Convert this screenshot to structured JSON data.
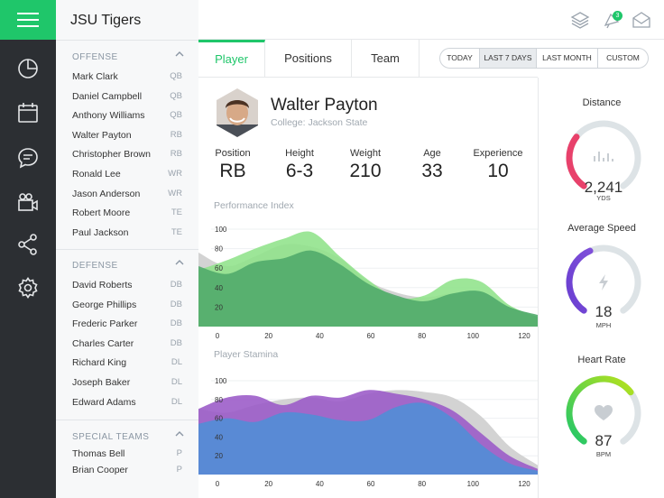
{
  "team": {
    "name": "JSU Tigers"
  },
  "colors": {
    "accent": "#1fc66a",
    "rail": "#2c2f33"
  },
  "rail": {
    "icons": [
      "menu-icon",
      "pie-chart-icon",
      "calendar-icon",
      "chat-icon",
      "video-camera-icon",
      "share-icon",
      "settings-icon"
    ]
  },
  "roster": {
    "offense": {
      "title": "OFFENSE",
      "players": [
        {
          "name": "Mark Clark",
          "pos": "QB"
        },
        {
          "name": "Daniel Campbell",
          "pos": "QB"
        },
        {
          "name": "Anthony Williams",
          "pos": "QB"
        },
        {
          "name": "Walter Payton",
          "pos": "RB"
        },
        {
          "name": "Christopher Brown",
          "pos": "RB"
        },
        {
          "name": "Ronald Lee",
          "pos": "WR"
        },
        {
          "name": "Jason Anderson",
          "pos": "WR"
        },
        {
          "name": "Robert Moore",
          "pos": "TE"
        },
        {
          "name": "Paul Jackson",
          "pos": "TE"
        }
      ]
    },
    "defense": {
      "title": "DEFENSE",
      "players": [
        {
          "name": "David Roberts",
          "pos": "DB"
        },
        {
          "name": "George Phillips",
          "pos": "DB"
        },
        {
          "name": "Frederic Parker",
          "pos": "DB"
        },
        {
          "name": "Charles Carter",
          "pos": "DB"
        },
        {
          "name": "Richard King",
          "pos": "DL"
        },
        {
          "name": "Joseph Baker",
          "pos": "DL"
        },
        {
          "name": "Edward Adams",
          "pos": "DL"
        }
      ]
    },
    "special": {
      "title": "SPECIAL TEAMS",
      "players": [
        {
          "name": "Thomas Bell",
          "pos": "P"
        },
        {
          "name": "Brian Cooper",
          "pos": "P"
        }
      ]
    }
  },
  "topbar": {
    "notification_count": "3"
  },
  "tabs": [
    {
      "label": "Player",
      "active": true
    },
    {
      "label": "Positions",
      "active": false
    },
    {
      "label": "Team",
      "active": false
    }
  ],
  "range": {
    "options": [
      "TODAY",
      "LAST 7 DAYS",
      "LAST MONTH",
      "CUSTOM"
    ],
    "selected": "LAST 7 DAYS"
  },
  "player": {
    "name": "Walter Payton",
    "college": "College: Jackson State",
    "stats": [
      {
        "label": "Position",
        "value": "RB"
      },
      {
        "label": "Height",
        "value": "6-3"
      },
      {
        "label": "Weight",
        "value": "210"
      },
      {
        "label": "Age",
        "value": "33"
      },
      {
        "label": "Experience",
        "value": "10"
      }
    ]
  },
  "chart_data": [
    {
      "type": "area",
      "title": "Performance Index",
      "x": [
        0,
        10,
        20,
        30,
        40,
        50,
        60,
        70,
        80,
        90,
        100,
        110,
        120
      ],
      "xticks": [
        0,
        20,
        40,
        60,
        80,
        100,
        120
      ],
      "yticks": [
        20,
        40,
        60,
        80,
        100
      ],
      "xlim": [
        0,
        120
      ],
      "ylim": [
        0,
        100
      ],
      "series": [
        {
          "color": "#d3d3d3",
          "values": [
            76,
            62,
            72,
            84,
            82,
            70,
            47,
            35,
            30,
            34,
            30,
            20,
            8
          ]
        },
        {
          "color": "#8fe28a",
          "values": [
            58,
            68,
            80,
            90,
            97,
            72,
            48,
            30,
            32,
            48,
            46,
            22,
            10
          ]
        },
        {
          "color": "#4ea86a",
          "values": [
            62,
            54,
            66,
            70,
            78,
            64,
            44,
            32,
            26,
            34,
            36,
            20,
            12
          ]
        }
      ]
    },
    {
      "type": "area",
      "title": "Player Stamina",
      "x": [
        0,
        10,
        20,
        30,
        40,
        50,
        60,
        70,
        80,
        90,
        100,
        110,
        120
      ],
      "xticks": [
        0,
        20,
        40,
        60,
        80,
        100,
        120
      ],
      "yticks": [
        20,
        40,
        60,
        80,
        100
      ],
      "xlim": [
        0,
        120
      ],
      "ylim": [
        0,
        100
      ],
      "series": [
        {
          "color": "#d3d3d3",
          "values": [
            70,
            66,
            74,
            80,
            82,
            78,
            86,
            90,
            88,
            82,
            62,
            30,
            10
          ]
        },
        {
          "color": "#9a59c7",
          "values": [
            70,
            82,
            84,
            74,
            84,
            82,
            90,
            86,
            80,
            68,
            44,
            20,
            6
          ]
        },
        {
          "color": "#4e8ed6",
          "values": [
            54,
            60,
            56,
            66,
            64,
            58,
            58,
            72,
            76,
            60,
            32,
            12,
            4
          ]
        }
      ]
    }
  ],
  "gauges": [
    {
      "title": "Distance",
      "value": "2,241",
      "unit": "YDS",
      "fraction": 0.32,
      "color_start": "#e8416b",
      "color_end": "#e8416b",
      "icon": "bar-chart-icon"
    },
    {
      "title": "Average Speed",
      "value": "18",
      "unit": "MPH",
      "fraction": 0.42,
      "color_start": "#6a3fd1",
      "color_end": "#7f4fd9",
      "icon": "lightning-icon"
    },
    {
      "title": "Heart Rate",
      "value": "87",
      "unit": "BPM",
      "fraction": 0.68,
      "color_start": "#1fc66a",
      "color_end": "#b7e21d",
      "icon": "heart-icon"
    }
  ]
}
